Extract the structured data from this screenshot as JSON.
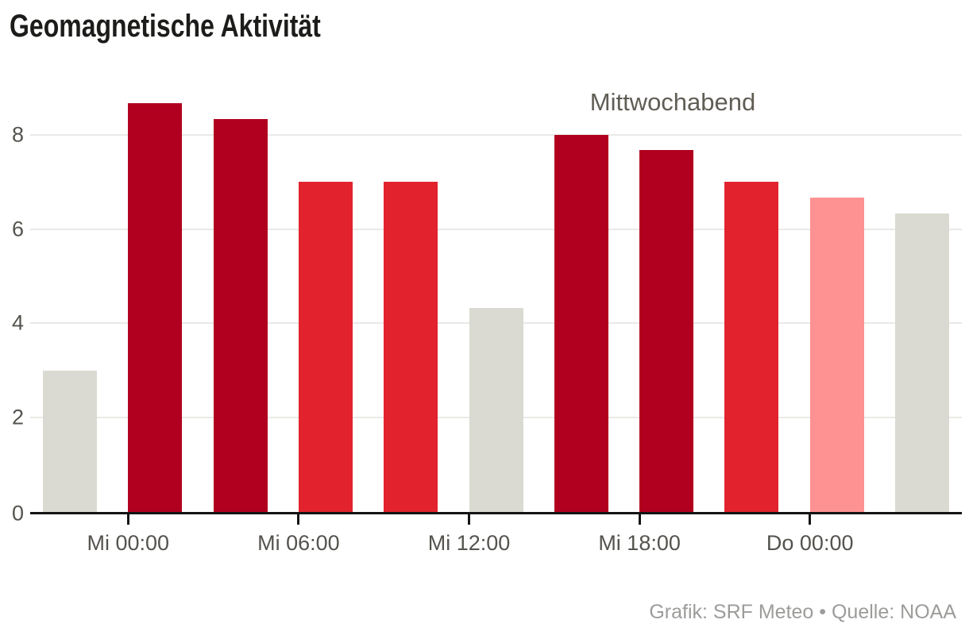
{
  "chart_data": {
    "type": "bar",
    "title": "Geomagnetische Aktivität",
    "annotation": "Mittwochabend",
    "xlabel": "",
    "ylabel": "",
    "ylim": [
      0,
      9
    ],
    "yticks": [
      0,
      2,
      4,
      6,
      8
    ],
    "grid": "horizontal",
    "legend": "none",
    "x_tick_labels": [
      "Mi 00:00",
      "Mi 06:00",
      "Mi 12:00",
      "Mi 18:00",
      "Do 00:00"
    ],
    "x_tick_bar_indices": [
      1,
      3,
      5,
      7,
      9
    ],
    "values": [
      3.0,
      8.67,
      8.33,
      7.0,
      7.0,
      4.33,
      8.0,
      7.67,
      7.0,
      6.67,
      6.33
    ],
    "bar_colors": [
      "gray",
      "dark_red",
      "dark_red",
      "red",
      "red",
      "gray",
      "dark_red",
      "dark_red",
      "red",
      "pink",
      "gray"
    ],
    "palette": {
      "gray": "#dadad2",
      "dark_red": "#b1001f",
      "red": "#e2232e",
      "pink": "#fe9191"
    },
    "source": "Grafik: SRF Meteo • Quelle: NOAA"
  }
}
